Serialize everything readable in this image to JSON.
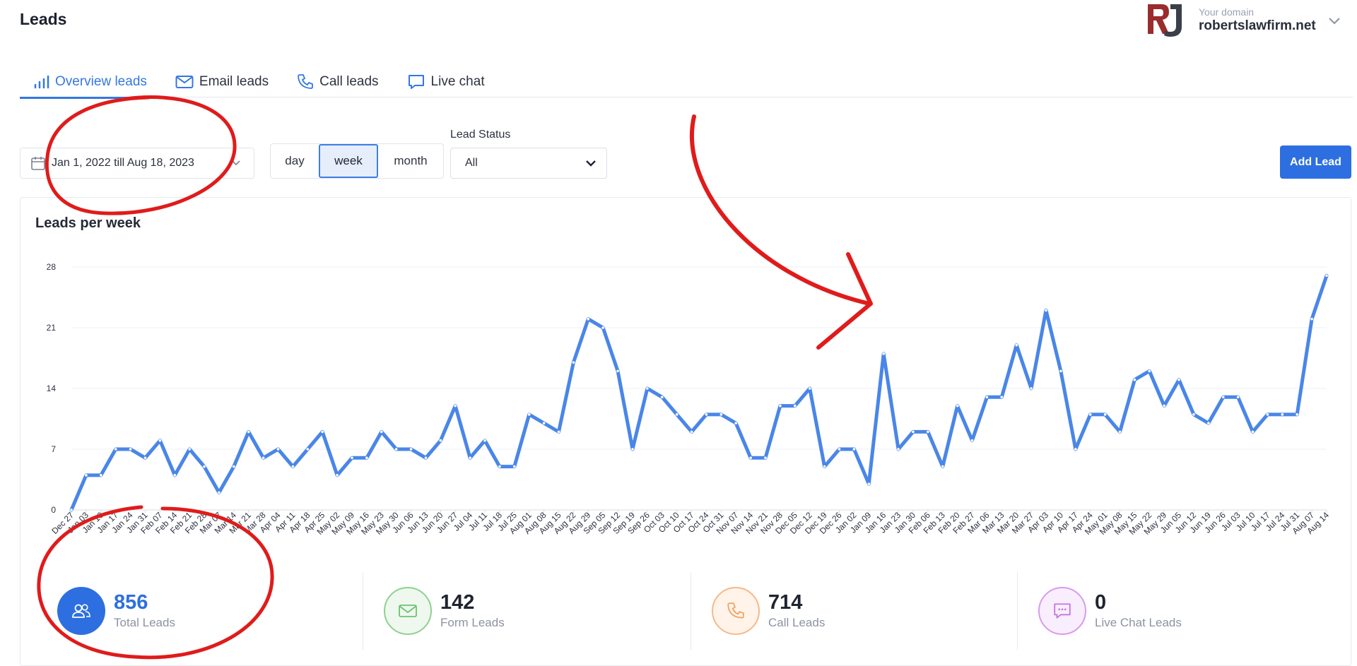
{
  "header": {
    "title": "Leads",
    "domain_caption": "Your domain",
    "domain_name": "robertslawfirm.net"
  },
  "tabs": [
    {
      "label": "Overview leads",
      "icon": "bar-chart-icon",
      "active": true
    },
    {
      "label": "Email leads",
      "icon": "envelope-icon",
      "active": false
    },
    {
      "label": "Call leads",
      "icon": "phone-icon",
      "active": false
    },
    {
      "label": "Live chat",
      "icon": "chat-bubble-icon",
      "active": false
    }
  ],
  "filters": {
    "date_range": "Jan 1, 2022 till Aug 18, 2023",
    "periods": [
      "day",
      "week",
      "month"
    ],
    "selected_period": "week",
    "lead_status_label": "Lead Status",
    "lead_status_value": "All"
  },
  "actions": {
    "add_lead": "Add Lead"
  },
  "chart_data": {
    "type": "line",
    "title": "Leads per week",
    "xlabel": "",
    "ylabel": "",
    "ylim": [
      0,
      28
    ],
    "yticks": [
      0,
      7,
      14,
      21,
      28
    ],
    "grid": true,
    "x": [
      "Dec 27",
      "Jan 03",
      "Jan 10",
      "Jan 17",
      "Jan 24",
      "Jan 31",
      "Feb 07",
      "Feb 14",
      "Feb 21",
      "Feb 28",
      "Mar 07",
      "Mar 14",
      "Mar 21",
      "Mar 28",
      "Apr 04",
      "Apr 11",
      "Apr 18",
      "Apr 25",
      "May 02",
      "May 09",
      "May 16",
      "May 23",
      "May 30",
      "Jun 06",
      "Jun 13",
      "Jun 20",
      "Jun 27",
      "Jul 04",
      "Jul 11",
      "Jul 18",
      "Jul 25",
      "Aug 01",
      "Aug 08",
      "Aug 15",
      "Aug 22",
      "Aug 29",
      "Sep 05",
      "Sep 12",
      "Sep 19",
      "Sep 26",
      "Oct 03",
      "Oct 10",
      "Oct 17",
      "Oct 24",
      "Oct 31",
      "Nov 07",
      "Nov 14",
      "Nov 21",
      "Nov 28",
      "Dec 05",
      "Dec 12",
      "Dec 19",
      "Dec 26",
      "Jan 02",
      "Jan 09",
      "Jan 16",
      "Jan 23",
      "Jan 30",
      "Feb 06",
      "Feb 13",
      "Feb 20",
      "Feb 27",
      "Mar 06",
      "Mar 13",
      "Mar 20",
      "Mar 27",
      "Apr 03",
      "Apr 10",
      "Apr 17",
      "Apr 24",
      "May 01",
      "May 08",
      "May 15",
      "May 22",
      "May 29",
      "Jun 05",
      "Jun 12",
      "Jun 19",
      "Jun 26",
      "Jul 03",
      "Jul 10",
      "Jul 17",
      "Jul 24",
      "Jul 31",
      "Aug 07",
      "Aug 14"
    ],
    "series": [
      {
        "color": "#4a86e8",
        "values": [
          0,
          4,
          4,
          7,
          7,
          6,
          8,
          4,
          7,
          5,
          2,
          5,
          9,
          6,
          7,
          5,
          7,
          9,
          4,
          6,
          6,
          9,
          7,
          7,
          6,
          8,
          12,
          6,
          8,
          5,
          5,
          11,
          10,
          9,
          17,
          22,
          21,
          16,
          7,
          14,
          13,
          11,
          9,
          11,
          11,
          10,
          6,
          6,
          12,
          12,
          14,
          5,
          7,
          7,
          3,
          18,
          7,
          9,
          9,
          5,
          12,
          8,
          13,
          13,
          19,
          14,
          23,
          16,
          7,
          11,
          11,
          9,
          15,
          16,
          12,
          15,
          11,
          10,
          13,
          13,
          9,
          11,
          11,
          11,
          22,
          27
        ]
      }
    ]
  },
  "stats": [
    {
      "value": "856",
      "label": "Total Leads",
      "icon": "users-icon",
      "color": "#2d6fe0"
    },
    {
      "value": "142",
      "label": "Form Leads",
      "icon": "envelope-icon",
      "color": "#6cc26f"
    },
    {
      "value": "714",
      "label": "Call Leads",
      "icon": "phone-icon",
      "color": "#f0a15e"
    },
    {
      "value": "0",
      "label": "Live Chat Leads",
      "icon": "chat-bubble-icon",
      "color": "#c46ee0"
    }
  ]
}
